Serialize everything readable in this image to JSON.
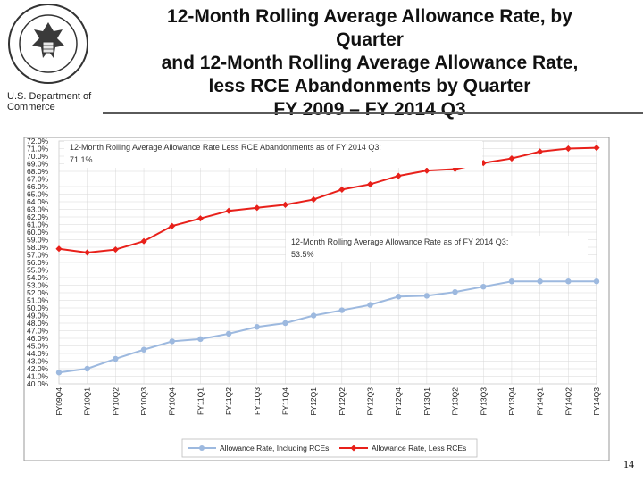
{
  "header": {
    "title_lines": [
      "12-Month Rolling Average Allowance Rate, by",
      "Quarter",
      "and 12-Month Rolling Average Allowance Rate,",
      "less RCE Abandonments by Quarter",
      "FY 2009 – FY 2014  Q3"
    ],
    "department": "U.S. Department of Commerce"
  },
  "page_number": "14",
  "colors": {
    "series_including": "#9db9df",
    "series_less": "#e8201a",
    "grid": "#d8d8d8"
  },
  "chart_data": {
    "type": "line",
    "title": "12-Month Rolling Average Allowance Rate, by Quarter and 12-Month Rolling Average Allowance Rate, less RCE Abandonments by Quarter FY 2009 – FY 2014  Q3",
    "xlabel": "",
    "ylabel": "",
    "ylim": [
      40,
      72
    ],
    "y_ticks": [
      "72.0%",
      "71.0%",
      "70.0%",
      "69.0%",
      "68.0%",
      "67.0%",
      "66.0%",
      "65.0%",
      "64.0%",
      "63.0%",
      "62.0%",
      "61.0%",
      "60.0%",
      "59.0%",
      "58.0%",
      "57.0%",
      "56.0%",
      "55.0%",
      "54.0%",
      "53.0%",
      "52.0%",
      "51.0%",
      "50.0%",
      "49.0%",
      "48.0%",
      "47.0%",
      "46.0%",
      "45.0%",
      "44.0%",
      "43.0%",
      "42.0%",
      "41.0%",
      "40.0%"
    ],
    "categories": [
      "FY09Q4",
      "FY10Q1",
      "FY10Q2",
      "FY10Q3",
      "FY10Q4",
      "FY11Q1",
      "FY11Q2",
      "FY11Q3",
      "FY11Q4",
      "FY12Q1",
      "FY12Q2",
      "FY12Q3",
      "FY12Q4",
      "FY13Q1",
      "FY13Q2",
      "FY13Q3",
      "FY13Q4",
      "FY14Q1",
      "FY14Q2",
      "FY14Q3"
    ],
    "series": [
      {
        "name": "Allowance Rate, Including RCEs",
        "values": [
          41.5,
          42.0,
          43.3,
          44.5,
          45.6,
          45.9,
          46.6,
          47.5,
          48.0,
          49.0,
          49.7,
          50.4,
          51.5,
          51.6,
          52.1,
          52.8,
          53.5,
          53.5,
          53.5,
          53.5
        ]
      },
      {
        "name": "Allowance Rate, Less RCEs",
        "values": [
          57.8,
          57.3,
          57.7,
          58.8,
          60.8,
          61.8,
          62.8,
          63.2,
          63.6,
          64.3,
          65.6,
          66.3,
          67.4,
          68.1,
          68.3,
          69.1,
          69.7,
          70.6,
          71.0,
          71.1
        ]
      }
    ],
    "annotations": [
      {
        "text_line1": "12-Month Rolling Average Allowance Rate Less RCE Abandonments as of FY 2014 Q3:",
        "text_line2": "71.1%"
      },
      {
        "text_line1": "12-Month Rolling Average Allowance Rate as of FY 2014 Q3:",
        "text_line2": "53.5%"
      }
    ],
    "legend_position": "bottom-center",
    "grid": true
  }
}
